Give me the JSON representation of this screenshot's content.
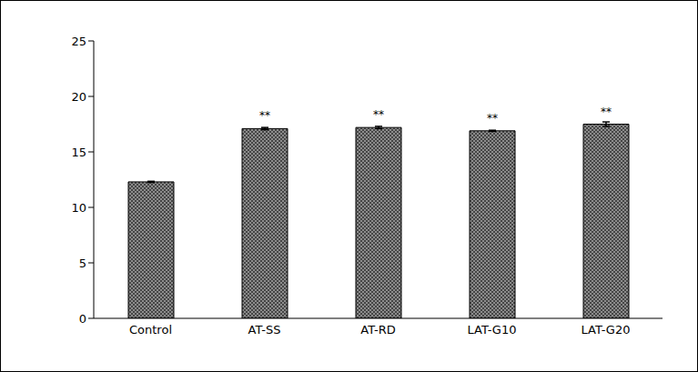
{
  "chart_data": {
    "type": "bar",
    "categories": [
      "Control",
      "AT-SS",
      "AT-RD",
      "LAT-G10",
      "LAT-G20"
    ],
    "values": [
      12.3,
      17.1,
      17.2,
      16.9,
      17.5
    ],
    "errors": [
      0.05,
      0.1,
      0.1,
      0.05,
      0.2
    ],
    "significance": [
      null,
      "**",
      "**",
      "**",
      "**"
    ],
    "color": "#8c8c8c",
    "ylim": [
      0,
      25
    ],
    "yticks": [
      0,
      5,
      10,
      15,
      20,
      25
    ],
    "grid": false
  }
}
